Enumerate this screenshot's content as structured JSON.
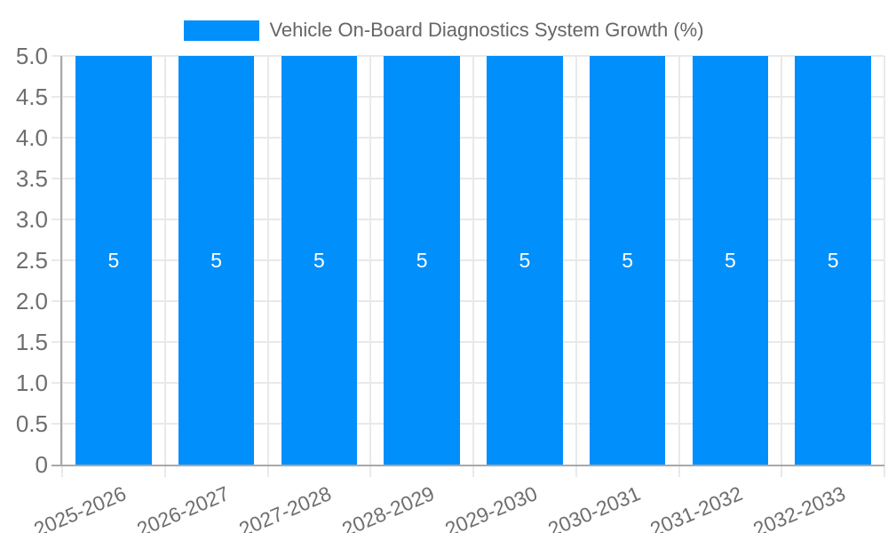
{
  "legend": {
    "label": "Vehicle On-Board Diagnostics System Growth (%)"
  },
  "chart_data": {
    "type": "bar",
    "title": "Vehicle On-Board Diagnostics System Growth (%)",
    "categories": [
      "2025-2026",
      "2026-2027",
      "2027-2028",
      "2028-2029",
      "2029-2030",
      "2030-2031",
      "2031-2032",
      "2032-2033"
    ],
    "values": [
      5,
      5,
      5,
      5,
      5,
      5,
      5,
      5
    ],
    "data_labels": [
      "5",
      "5",
      "5",
      "5",
      "5",
      "5",
      "5",
      "5"
    ],
    "xlabel": "",
    "ylabel": "",
    "ylim": [
      0,
      5
    ],
    "ytick_step": 0.5,
    "ytick_labels": [
      "0",
      "0.5",
      "1.0",
      "1.5",
      "2.0",
      "2.5",
      "3.0",
      "3.5",
      "4.0",
      "4.5",
      "5.0"
    ],
    "grid": true,
    "legend_position": "top",
    "colors": {
      "bar": "#008FFB",
      "data_label": "#ffffff",
      "grid": "#e9e9e9",
      "axis_line": "#a8a8a8",
      "tick_label": "#6e6e6e",
      "legend_text": "#666666",
      "background": "#ffffff"
    }
  }
}
